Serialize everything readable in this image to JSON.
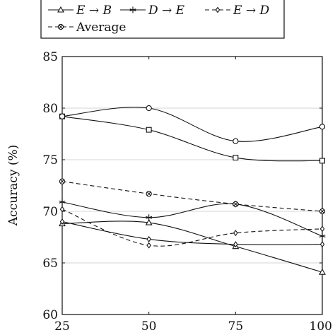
{
  "chart_data": {
    "type": "line",
    "x": [
      25,
      50,
      75,
      100
    ],
    "xlim": [
      25,
      100
    ],
    "ylim": [
      60,
      85
    ],
    "xticks": [
      "25",
      "50",
      "75",
      "100"
    ],
    "yticks": [
      "60",
      "65",
      "70",
      "75",
      "80",
      "85"
    ],
    "xlabel": "",
    "ylabel": "Accuracy (%)",
    "grid": "horizontal",
    "legend_position": "top",
    "series": [
      {
        "name": "E → B",
        "marker": "triangle",
        "dash": "solid",
        "values": [
          68.8,
          68.9,
          66.6,
          64.1
        ]
      },
      {
        "name": "D → E",
        "marker": "star",
        "dash": "solid",
        "values": [
          70.9,
          69.4,
          70.7,
          67.6
        ]
      },
      {
        "name": "E → D",
        "marker": "diamond",
        "dash": "dashed",
        "values": [
          70.2,
          66.7,
          67.9,
          68.3
        ]
      },
      {
        "name": "Average",
        "marker": "circle-x",
        "dash": "dashed",
        "values": [
          72.9,
          71.7,
          70.7,
          70.0
        ]
      },
      {
        "name": "",
        "marker": "square",
        "dash": "solid",
        "values": [
          79.2,
          77.9,
          75.2,
          74.9
        ]
      },
      {
        "name": "",
        "marker": "circle",
        "dash": "solid",
        "values": [
          79.2,
          80.0,
          76.8,
          78.2
        ]
      },
      {
        "name": "",
        "marker": "diamond",
        "dash": "solid",
        "values": [
          69.0,
          67.3,
          66.8,
          66.8
        ]
      }
    ]
  }
}
